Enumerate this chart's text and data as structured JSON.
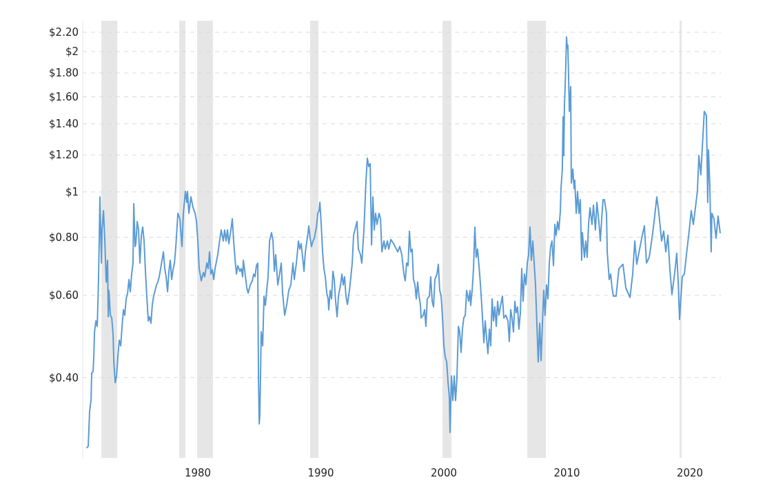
{
  "chart_data": {
    "type": "line",
    "log": true,
    "grid": "y",
    "xlim": [
      1970.64,
      2022.52
    ],
    "xticks": [
      1980,
      1990,
      2000,
      2010,
      2020
    ],
    "ylim": [
      0.269,
      2.33
    ],
    "yticks": [
      {
        "value": 0.4,
        "label": "$0.40"
      },
      {
        "value": 0.6,
        "label": "$0.60"
      },
      {
        "value": 0.8,
        "label": "$0.80"
      },
      {
        "value": 1,
        "label": "$1"
      },
      {
        "value": 1.2,
        "label": "$1.20"
      },
      {
        "value": 1.4,
        "label": "$1.40"
      },
      {
        "value": 1.6,
        "label": "$1.60"
      },
      {
        "value": 1.8,
        "label": "$1.80"
      },
      {
        "value": 2,
        "label": "$2"
      },
      {
        "value": 2.2,
        "label": "$2.20"
      }
    ],
    "bands": [
      {
        "axis": "x",
        "from": 1972.16,
        "to": 1973.45,
        "color": "#e6e6e6"
      },
      {
        "axis": "x",
        "from": 1978.49,
        "to": 1978.99,
        "color": "#e6e6e6"
      },
      {
        "axis": "x",
        "from": 1979.94,
        "to": 1981.23,
        "color": "#e6e6e6"
      },
      {
        "axis": "x",
        "from": 1989.13,
        "to": 1989.8,
        "color": "#e6e6e6"
      },
      {
        "axis": "x",
        "from": 1999.89,
        "to": 2000.62,
        "color": "#e6e6e6"
      },
      {
        "axis": "x",
        "from": 2006.78,
        "to": 2008.29,
        "color": "#e6e6e6"
      },
      {
        "axis": "x",
        "from": 2019.16,
        "to": 2019.33,
        "color": "#e6e6e6"
      }
    ],
    "series": [
      {
        "color": "#5b9bd5",
        "x": [
          1970.98,
          1971.09,
          1971.2,
          1971.32,
          1971.37,
          1971.48,
          1971.54,
          1971.6,
          1971.71,
          1971.82,
          1971.88,
          1971.93,
          1971.99,
          1972.04,
          1972.16,
          1972.21,
          1972.33,
          1972.44,
          1972.55,
          1972.66,
          1972.72,
          1972.77,
          1972.89,
          1973.0,
          1973.11,
          1973.17,
          1973.28,
          1973.39,
          1973.5,
          1973.61,
          1973.73,
          1973.84,
          1973.95,
          1974.06,
          1974.17,
          1974.29,
          1974.4,
          1974.51,
          1974.62,
          1974.73,
          1974.79,
          1974.9,
          1974.96,
          1975.07,
          1975.18,
          1975.29,
          1975.41,
          1975.52,
          1975.63,
          1975.74,
          1975.85,
          1975.97,
          1976.08,
          1976.19,
          1976.3,
          1976.41,
          1976.64,
          1976.75,
          1976.86,
          1977.09,
          1977.2,
          1977.31,
          1977.42,
          1977.54,
          1977.65,
          1977.76,
          1977.87,
          1977.98,
          1978.1,
          1978.21,
          1978.38,
          1978.54,
          1978.71,
          1978.82,
          1978.99,
          1979.1,
          1979.16,
          1979.27,
          1979.44,
          1979.61,
          1979.78,
          1979.89,
          1980.0,
          1980.11,
          1980.28,
          1980.45,
          1980.56,
          1980.73,
          1980.84,
          1980.95,
          1981.06,
          1981.18,
          1981.29,
          1981.4,
          1981.62,
          1981.74,
          1981.9,
          1982.07,
          1982.18,
          1982.3,
          1982.41,
          1982.52,
          1982.69,
          1982.8,
          1982.91,
          1983.03,
          1983.14,
          1983.25,
          1983.42,
          1983.53,
          1983.64,
          1983.7,
          1983.87,
          1983.98,
          1984.09,
          1984.26,
          1984.43,
          1984.54,
          1984.65,
          1984.76,
          1984.87,
          1984.93,
          1984.99,
          1985.04,
          1985.1,
          1985.15,
          1985.27,
          1985.38,
          1985.49,
          1985.6,
          1985.71,
          1985.83,
          1985.99,
          1986.11,
          1986.22,
          1986.33,
          1986.5,
          1986.61,
          1986.78,
          1986.89,
          1987.06,
          1987.23,
          1987.39,
          1987.56,
          1987.73,
          1987.84,
          1988.01,
          1988.18,
          1988.29,
          1988.4,
          1988.52,
          1988.63,
          1988.74,
          1988.96,
          1989.02,
          1989.13,
          1989.24,
          1989.36,
          1989.47,
          1989.64,
          1989.75,
          1989.86,
          1989.92,
          1990.03,
          1990.14,
          1990.25,
          1990.36,
          1990.48,
          1990.59,
          1990.64,
          1990.76,
          1990.87,
          1990.98,
          1991.09,
          1991.2,
          1991.32,
          1991.43,
          1991.6,
          1991.71,
          1991.82,
          1991.93,
          1992.04,
          1992.16,
          1992.32,
          1992.44,
          1992.55,
          1992.66,
          1992.77,
          1992.94,
          1993.05,
          1993.22,
          1993.33,
          1993.5,
          1993.67,
          1993.78,
          1993.89,
          1994.01,
          1994.12,
          1994.23,
          1994.34,
          1994.45,
          1994.57,
          1994.73,
          1994.85,
          1994.96,
          1995.13,
          1995.24,
          1995.41,
          1995.52,
          1995.69,
          1995.91,
          1996.08,
          1996.25,
          1996.41,
          1996.58,
          1996.75,
          1996.86,
          1996.97,
          1997.09,
          1997.2,
          1997.31,
          1997.42,
          1997.53,
          1997.65,
          1997.76,
          1997.87,
          1997.98,
          1998.09,
          1998.15,
          1998.32,
          1998.43,
          1998.54,
          1998.65,
          1998.82,
          1998.93,
          1999.05,
          1999.16,
          1999.27,
          1999.44,
          1999.55,
          1999.66,
          1999.78,
          1999.89,
          2000.0,
          2000.11,
          2000.23,
          2000.34,
          2000.45,
          2000.5,
          2000.62,
          2000.73,
          2000.84,
          2000.95,
          2001.06,
          2001.18,
          2001.29,
          2001.4,
          2001.51,
          2001.62,
          2001.74,
          2001.85,
          2002.02,
          2002.13,
          2002.18,
          2002.3,
          2002.41,
          2002.52,
          2002.63,
          2002.74,
          2002.91,
          2003.02,
          2003.14,
          2003.25,
          2003.36,
          2003.47,
          2003.58,
          2003.7,
          2003.81,
          2003.92,
          2004.03,
          2004.14,
          2004.26,
          2004.37,
          2004.48,
          2004.59,
          2004.76,
          2004.87,
          2005.04,
          2005.21,
          2005.32,
          2005.43,
          2005.54,
          2005.66,
          2005.77,
          2005.88,
          2005.99,
          2006.1,
          2006.22,
          2006.33,
          2006.44,
          2006.55,
          2006.67,
          2006.78,
          2006.89,
          2007.0,
          2007.11,
          2007.23,
          2007.34,
          2007.45,
          2007.56,
          2007.67,
          2007.79,
          2007.9,
          2008.01,
          2008.12,
          2008.23,
          2008.35,
          2008.46,
          2008.57,
          2008.68,
          2008.79,
          2008.91,
          2009.02,
          2009.13,
          2009.24,
          2009.35,
          2009.47,
          2009.52,
          2009.63,
          2009.69,
          2009.75,
          2009.8,
          2009.86,
          2009.92,
          2009.97,
          2010.03,
          2010.08,
          2010.2,
          2010.31,
          2010.36,
          2010.48,
          2010.59,
          2010.64,
          2010.76,
          2010.87,
          2010.98,
          2011.09,
          2011.2,
          2011.26,
          2011.43,
          2011.54,
          2011.65,
          2011.76,
          2011.88,
          2012.04,
          2012.16,
          2012.32,
          2012.44,
          2012.6,
          2012.72,
          2012.83,
          2012.94,
          2013.05,
          2013.22,
          2013.28,
          2013.44,
          2013.56,
          2013.67,
          2013.78,
          2014.0,
          2014.23,
          2014.56,
          2014.79,
          2015.13,
          2015.35,
          2015.52,
          2015.68,
          2015.91,
          2016.13,
          2016.3,
          2016.47,
          2016.69,
          2016.92,
          2017.09,
          2017.31,
          2017.48,
          2017.7,
          2017.87,
          2018.04,
          2018.21,
          2018.37,
          2018.54,
          2018.77,
          2018.93,
          2019.05,
          2019.16,
          2019.38,
          2019.55,
          2019.72,
          2019.94,
          2020.11,
          2020.28,
          2020.45,
          2020.61,
          2020.73,
          2020.89,
          2021.01,
          2021.17,
          2021.34,
          2021.45,
          2021.51,
          2021.62,
          2021.73,
          2021.79,
          2021.96,
          2022.13,
          2022.29,
          2022.46
        ],
        "values": [
          0.283,
          0.285,
          0.338,
          0.359,
          0.409,
          0.412,
          0.441,
          0.501,
          0.529,
          0.515,
          0.583,
          0.658,
          0.807,
          0.976,
          0.704,
          0.829,
          0.912,
          0.785,
          0.641,
          0.714,
          0.54,
          0.615,
          0.544,
          0.537,
          0.495,
          0.432,
          0.39,
          0.403,
          0.443,
          0.481,
          0.468,
          0.515,
          0.559,
          0.544,
          0.59,
          0.607,
          0.649,
          0.611,
          0.667,
          0.704,
          0.944,
          0.764,
          0.775,
          0.864,
          0.829,
          0.704,
          0.807,
          0.841,
          0.785,
          0.676,
          0.598,
          0.529,
          0.54,
          0.523,
          0.574,
          0.598,
          0.632,
          0.641,
          0.658,
          0.714,
          0.744,
          0.685,
          0.658,
          0.611,
          0.676,
          0.714,
          0.649,
          0.681,
          0.704,
          0.764,
          0.9,
          0.876,
          0.764,
          0.9,
          1.003,
          0.95,
          1.003,
          0.9,
          0.976,
          0.925,
          0.9,
          0.864,
          0.785,
          0.685,
          0.645,
          0.672,
          0.658,
          0.704,
          0.685,
          0.744,
          0.667,
          0.681,
          0.649,
          0.685,
          0.734,
          0.775,
          0.829,
          0.785,
          0.829,
          0.785,
          0.829,
          0.775,
          0.829,
          0.876,
          0.785,
          0.714,
          0.667,
          0.695,
          0.676,
          0.685,
          0.658,
          0.714,
          0.658,
          0.623,
          0.607,
          0.632,
          0.645,
          0.667,
          0.658,
          0.695,
          0.704,
          0.398,
          0.318,
          0.333,
          0.409,
          0.501,
          0.468,
          0.598,
          0.571,
          0.615,
          0.658,
          0.785,
          0.818,
          0.785,
          0.676,
          0.734,
          0.632,
          0.658,
          0.704,
          0.607,
          0.544,
          0.574,
          0.615,
          0.632,
          0.704,
          0.649,
          0.704,
          0.785,
          0.754,
          0.775,
          0.724,
          0.676,
          0.744,
          0.818,
          0.846,
          0.796,
          0.764,
          0.785,
          0.796,
          0.841,
          0.9,
          0.912,
          0.95,
          0.852,
          0.744,
          0.685,
          0.658,
          0.607,
          0.59,
          0.559,
          0.615,
          0.59,
          0.676,
          0.649,
          0.583,
          0.54,
          0.598,
          0.632,
          0.667,
          0.632,
          0.658,
          0.598,
          0.574,
          0.615,
          0.658,
          0.704,
          0.807,
          0.829,
          0.864,
          0.754,
          0.734,
          0.704,
          0.829,
          1.06,
          1.181,
          1.134,
          1.15,
          0.77,
          0.976,
          0.829,
          0.9,
          0.852,
          0.9,
          0.876,
          0.744,
          0.785,
          0.754,
          0.785,
          0.754,
          0.791,
          0.775,
          0.759,
          0.744,
          0.764,
          0.734,
          0.667,
          0.645,
          0.704,
          0.695,
          0.824,
          0.744,
          0.754,
          0.649,
          0.632,
          0.59,
          0.641,
          0.598,
          0.574,
          0.537,
          0.544,
          0.559,
          0.515,
          0.59,
          0.598,
          0.658,
          0.583,
          0.567,
          0.649,
          0.667,
          0.7,
          0.615,
          0.598,
          0.537,
          0.468,
          0.443,
          0.432,
          0.39,
          0.362,
          0.305,
          0.403,
          0.357,
          0.403,
          0.357,
          0.398,
          0.515,
          0.501,
          0.453,
          0.508,
          0.537,
          0.544,
          0.615,
          0.583,
          0.615,
          0.571,
          0.615,
          0.685,
          0.841,
          0.724,
          0.754,
          0.667,
          0.607,
          0.537,
          0.475,
          0.529,
          0.488,
          0.45,
          0.508,
          0.468,
          0.59,
          0.529,
          0.567,
          0.515,
          0.583,
          0.544,
          0.567,
          0.598,
          0.537,
          0.544,
          0.529,
          0.478,
          0.559,
          0.537,
          0.501,
          0.583,
          0.551,
          0.567,
          0.508,
          0.551,
          0.685,
          0.583,
          0.667,
          0.632,
          0.704,
          0.734,
          0.841,
          0.714,
          0.785,
          0.704,
          0.632,
          0.523,
          0.432,
          0.523,
          0.435,
          0.523,
          0.615,
          0.544,
          0.632,
          0.59,
          0.704,
          0.764,
          0.785,
          0.695,
          0.852,
          0.807,
          0.864,
          0.829,
          0.912,
          1.017,
          1.119,
          1.449,
          1.197,
          1.53,
          1.683,
          1.902,
          2.149,
          2.036,
          2.064,
          1.489,
          1.683,
          1.045,
          1.119,
          1.017,
          1.06,
          0.9,
          1.003,
          0.9,
          0.963,
          0.714,
          0.818,
          0.724,
          0.785,
          0.724,
          0.852,
          0.925,
          0.852,
          0.937,
          0.829,
          0.95,
          0.864,
          0.785,
          0.876,
          0.963,
          0.963,
          0.9,
          0.744,
          0.649,
          0.667,
          0.623,
          0.598,
          0.598,
          0.685,
          0.7,
          0.623,
          0.594,
          0.667,
          0.785,
          0.7,
          0.754,
          0.807,
          0.846,
          0.704,
          0.724,
          0.796,
          0.864,
          0.976,
          0.9,
          0.785,
          0.824,
          0.744,
          0.807,
          0.685,
          0.603,
          0.672,
          0.739,
          0.641,
          0.533,
          0.658,
          0.667,
          0.734,
          0.824,
          0.912,
          0.852,
          0.925,
          1.003,
          1.197,
          1.089,
          1.247,
          1.489,
          1.459,
          0.95,
          1.231,
          1.031,
          0.744,
          0.9,
          0.876,
          0.796,
          0.888,
          0.818
        ]
      }
    ]
  }
}
